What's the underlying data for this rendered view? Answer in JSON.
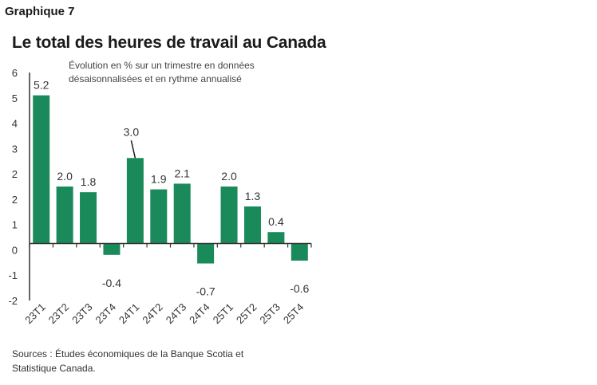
{
  "header": {
    "graphique": "Graphique 7",
    "title": "Le total des heures de travail au Canada"
  },
  "chart_data": {
    "type": "bar",
    "title": "Le total des heures de travail au Canada",
    "subtitle_lines": [
      "Évolution en % sur un trimestre en données",
      "désaisonnalisées et en rythme annualisé"
    ],
    "categories": [
      "23T1",
      "23T2",
      "23T3",
      "23T4",
      "24T1",
      "24T2",
      "24T3",
      "24T4",
      "25T1",
      "25T2",
      "25T3",
      "25T4"
    ],
    "values": [
      5.2,
      2.0,
      1.8,
      -0.4,
      3.0,
      1.9,
      2.1,
      -0.7,
      2.0,
      1.3,
      0.4,
      -0.6
    ],
    "value_labels": [
      "5.2",
      "2.0",
      "1.8",
      "-0.4",
      "3.0",
      "1.9",
      "2.1",
      "-0.7",
      "2.0",
      "1.3",
      "0.4",
      "-0.6"
    ],
    "y_ticks": [
      "6",
      "5",
      "4",
      "3",
      "2",
      "2",
      "1",
      "0",
      "-1",
      "-2"
    ],
    "ylim": [
      -2,
      6
    ],
    "bar_color": "#1a8a5a",
    "grid": false,
    "legend": "none"
  },
  "source": "Sources : Études économiques de la Banque Scotia et Statistique Canada."
}
